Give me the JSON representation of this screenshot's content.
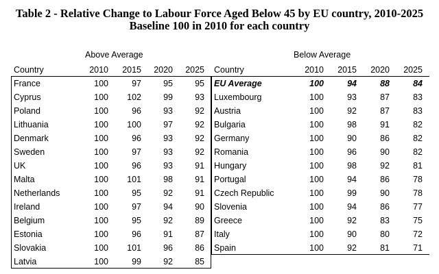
{
  "title": {
    "line1": "Table 2 - Relative Change to Labour Force Aged Below 45 by EU country, 2010-2025",
    "line2": "Baseline 100 in 2010 for each country"
  },
  "above": {
    "group_label": "Above Average",
    "headers": [
      "Country",
      "2010",
      "2015",
      "2020",
      "2025"
    ],
    "rows": [
      [
        "France",
        "100",
        "97",
        "95",
        "95"
      ],
      [
        "Cyprus",
        "100",
        "102",
        "99",
        "93"
      ],
      [
        "Poland",
        "100",
        "96",
        "93",
        "92"
      ],
      [
        "Lithuania",
        "100",
        "100",
        "97",
        "92"
      ],
      [
        "Denmark",
        "100",
        "96",
        "93",
        "92"
      ],
      [
        "Sweden",
        "100",
        "97",
        "93",
        "92"
      ],
      [
        "UK",
        "100",
        "96",
        "93",
        "91"
      ],
      [
        "Malta",
        "100",
        "101",
        "98",
        "91"
      ],
      [
        "Netherlands",
        "100",
        "95",
        "92",
        "91"
      ],
      [
        "Ireland",
        "100",
        "97",
        "94",
        "90"
      ],
      [
        "Belgium",
        "100",
        "95",
        "92",
        "89"
      ],
      [
        "Estonia",
        "100",
        "96",
        "91",
        "87"
      ],
      [
        "Slovakia",
        "100",
        "101",
        "96",
        "86"
      ],
      [
        "Latvia",
        "100",
        "99",
        "92",
        "85"
      ]
    ]
  },
  "below": {
    "group_label": "Below Average",
    "headers": [
      "Country",
      "2010",
      "2015",
      "2020",
      "2025"
    ],
    "rows": [
      [
        "EU Average",
        "100",
        "94",
        "88",
        "84"
      ],
      [
        "Luxembourg",
        "100",
        "93",
        "87",
        "83"
      ],
      [
        "Austria",
        "100",
        "92",
        "87",
        "83"
      ],
      [
        "Bulgaria",
        "100",
        "98",
        "91",
        "82"
      ],
      [
        "Germany",
        "100",
        "90",
        "86",
        "82"
      ],
      [
        "Romania",
        "100",
        "96",
        "90",
        "82"
      ],
      [
        "Hungary",
        "100",
        "98",
        "92",
        "81"
      ],
      [
        "Portugal",
        "100",
        "94",
        "86",
        "78"
      ],
      [
        "Czech Republic",
        "100",
        "99",
        "90",
        "78"
      ],
      [
        "Slovenia",
        "100",
        "94",
        "86",
        "77"
      ],
      [
        "Greece",
        "100",
        "92",
        "83",
        "75"
      ],
      [
        "Italy",
        "100",
        "90",
        "80",
        "72"
      ],
      [
        "Spain",
        "100",
        "92",
        "81",
        "71"
      ]
    ]
  }
}
